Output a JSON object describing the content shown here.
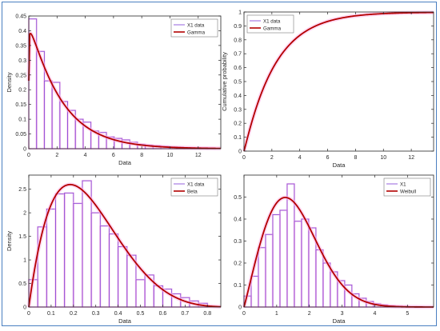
{
  "chart_data": [
    {
      "type": "bar",
      "panel": "top-left",
      "xlabel": "Data",
      "ylabel": "Density",
      "xlim": [
        0,
        13.6
      ],
      "ylim": [
        0,
        0.45
      ],
      "xticks": [
        0,
        2,
        4,
        6,
        8,
        10,
        12
      ],
      "yticks": [
        0,
        0.05,
        0.1,
        0.15,
        0.2,
        0.25,
        0.3,
        0.35,
        0.4,
        0.45
      ],
      "bin_edges": [
        0,
        0.55,
        1.1,
        1.65,
        2.2,
        2.75,
        3.3,
        3.85,
        4.4,
        4.95,
        5.5,
        6.05,
        6.6,
        7.15,
        7.7,
        8.25,
        8.8,
        9.35,
        9.9,
        10.45,
        11.0,
        11.55,
        12.1,
        12.65,
        13.2
      ],
      "values": [
        0.44,
        0.33,
        0.23,
        0.225,
        0.16,
        0.13,
        0.1,
        0.09,
        0.06,
        0.055,
        0.04,
        0.035,
        0.03,
        0.022,
        0.015,
        0.012,
        0.01,
        0.008,
        0.006,
        0.005,
        0.004,
        0.003,
        0.003,
        0.002
      ],
      "curve": {
        "kind": "gamma",
        "shape": 1.05,
        "scale": 2.15
      },
      "legend": [
        "X1 data",
        "Gamma"
      ],
      "legend_location": "top-right",
      "grid": false
    },
    {
      "type": "line",
      "panel": "top-right",
      "xlabel": "Data",
      "ylabel": "Cumulative probability",
      "xlim": [
        0,
        13.6
      ],
      "ylim": [
        0,
        1
      ],
      "xticks": [
        0,
        2,
        4,
        6,
        8,
        10,
        12
      ],
      "yticks": [
        0,
        0.1,
        0.2,
        0.3,
        0.4,
        0.5,
        0.6,
        0.7,
        0.8,
        0.9,
        1
      ],
      "curve": {
        "kind": "gamma_cdf",
        "shape": 1.05,
        "scale": 2.15
      },
      "legend": [
        "X1 data",
        "Gamma"
      ],
      "legend_location": "top-left",
      "grid": false
    },
    {
      "type": "bar",
      "panel": "bottom-left",
      "xlabel": "Data",
      "ylabel": "Density",
      "xlim": [
        0,
        0.86
      ],
      "ylim": [
        0,
        2.8
      ],
      "xticks": [
        0,
        0.1,
        0.2,
        0.3,
        0.4,
        0.5,
        0.6,
        0.7,
        0.8
      ],
      "yticks": [
        0,
        0.5,
        1,
        1.5,
        2,
        2.5
      ],
      "bin_edges": [
        0,
        0.04,
        0.08,
        0.12,
        0.16,
        0.2,
        0.24,
        0.28,
        0.32,
        0.36,
        0.4,
        0.44,
        0.48,
        0.52,
        0.56,
        0.6,
        0.64,
        0.68,
        0.72,
        0.76,
        0.8
      ],
      "values": [
        0.58,
        1.7,
        2.08,
        2.4,
        2.42,
        2.2,
        2.68,
        2.0,
        1.72,
        1.55,
        1.28,
        1.1,
        0.58,
        0.68,
        0.45,
        0.38,
        0.28,
        0.2,
        0.13,
        0.08
      ],
      "curve": {
        "kind": "beta",
        "a": 2.0,
        "b": 5.4
      },
      "legend": [
        "X1 data",
        "Beta"
      ],
      "legend_location": "top-right",
      "grid": false
    },
    {
      "type": "bar",
      "panel": "bottom-right",
      "xlabel": "Data",
      "ylabel": "",
      "xlim": [
        0,
        5.8
      ],
      "ylim": [
        0,
        0.6
      ],
      "xticks": [
        0,
        1,
        2,
        3,
        4,
        5
      ],
      "yticks": [
        0,
        0.1,
        0.2,
        0.3,
        0.4,
        0.5
      ],
      "bin_edges": [
        0,
        0.22,
        0.44,
        0.66,
        0.88,
        1.1,
        1.32,
        1.54,
        1.76,
        1.98,
        2.2,
        2.42,
        2.64,
        2.86,
        3.08,
        3.3,
        3.52,
        3.74,
        3.96,
        4.18,
        4.4,
        4.62,
        4.84,
        5.06,
        5.28,
        5.5
      ],
      "values": [
        0.05,
        0.14,
        0.27,
        0.33,
        0.42,
        0.44,
        0.56,
        0.39,
        0.4,
        0.36,
        0.26,
        0.2,
        0.16,
        0.12,
        0.1,
        0.06,
        0.04,
        0.025,
        0.015,
        0.01,
        0.006,
        0.004,
        0.003,
        0.002,
        0.001
      ],
      "curve": {
        "kind": "weibull",
        "scale": 1.75,
        "shape": 2.05
      },
      "legend": [
        "X1",
        "Weibull"
      ],
      "legend_location": "top-right",
      "grid": false
    }
  ],
  "colors": {
    "bar_edge": "#8a4fd8",
    "curve": "#b30000",
    "halo": "#ffb6e8",
    "axis": "#262626",
    "frame": "#4a7fc1"
  }
}
